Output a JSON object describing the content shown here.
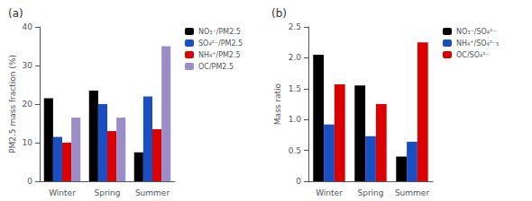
{
  "chart_data": [
    {
      "type": "bar",
      "title": "(a)",
      "categories": [
        "Winter",
        "Spring",
        "Summer"
      ],
      "series": [
        {
          "name": "NO₃⁻/PM2.5",
          "color": "#000000",
          "values": [
            21.5,
            23.5,
            7.5
          ]
        },
        {
          "name": "SO₄²⁻/PM2.5",
          "color": "#1a4fc4",
          "values": [
            11.5,
            20.0,
            22.0
          ]
        },
        {
          "name": "NH₄⁺/PM2.5",
          "color": "#dd0000",
          "values": [
            10.0,
            13.0,
            13.5
          ]
        },
        {
          "name": "OC/PM2.5",
          "color": "#9b8dc8",
          "values": [
            16.5,
            16.5,
            35.0
          ]
        }
      ],
      "ylabel": "PM2.5 mass fraction (%)",
      "ylim": [
        0,
        40
      ],
      "yticks": [
        0,
        10,
        20,
        30,
        40
      ],
      "grid": false,
      "legend": "right"
    },
    {
      "type": "bar",
      "title": "(b)",
      "categories": [
        "Winter",
        "Spring",
        "Summer"
      ],
      "series": [
        {
          "name": "NO₃⁻/SO₄²⁻",
          "color": "#000000",
          "values": [
            2.05,
            1.55,
            0.4
          ]
        },
        {
          "name": "NH₄⁺/SO₄²⁻₅",
          "color": "#1a4fc4",
          "values": [
            0.92,
            0.73,
            0.64
          ]
        },
        {
          "name": "OC/SO₄²⁻",
          "color": "#dd0000",
          "values": [
            1.57,
            1.25,
            2.25
          ]
        }
      ],
      "ylabel": "Mass ratio",
      "ylim": [
        0,
        2.5
      ],
      "yticks": [
        0,
        0.5,
        {
          "value": 1.0,
          "label": "1.0"
        },
        1.5,
        {
          "value": 2.0,
          "label": "2.0"
        },
        2.5
      ],
      "grid": false,
      "legend": "right"
    }
  ]
}
